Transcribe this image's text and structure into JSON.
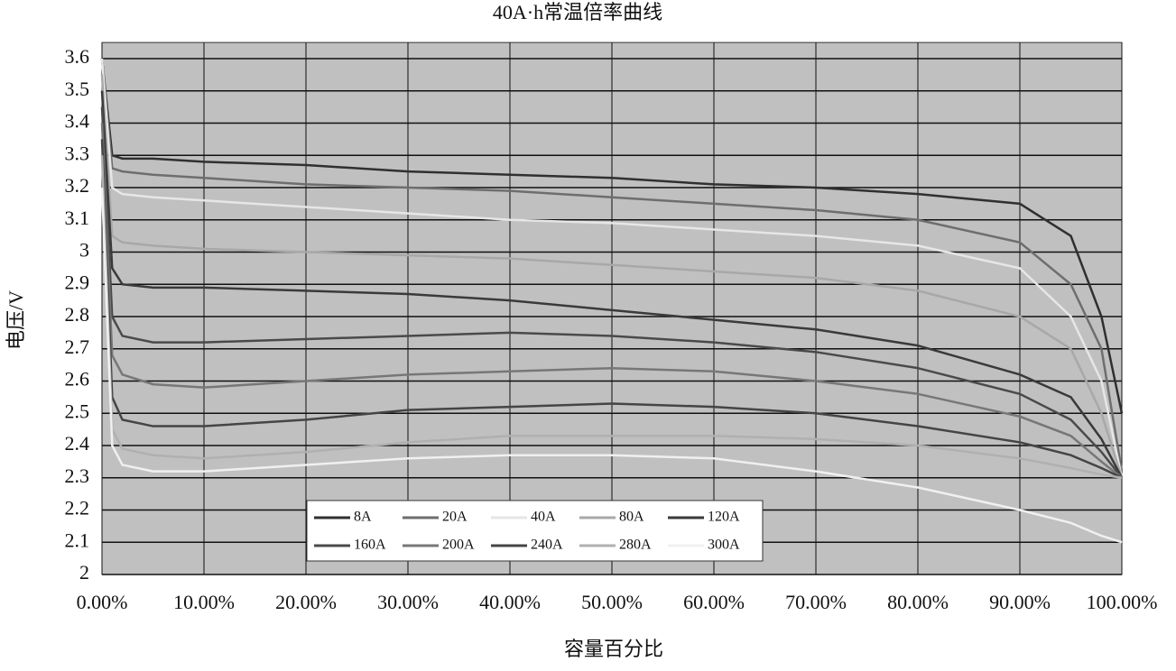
{
  "chart_data": {
    "type": "line",
    "title": "40A·h常温倍率曲线",
    "xlabel": "容量百分比",
    "ylabel": "电压/V",
    "x": [
      0,
      1,
      2,
      5,
      10,
      20,
      30,
      40,
      50,
      60,
      70,
      80,
      90,
      95,
      98,
      100
    ],
    "series": [
      {
        "name": "8A",
        "color": "#303030",
        "values": [
          3.6,
          3.3,
          3.29,
          3.29,
          3.28,
          3.27,
          3.25,
          3.24,
          3.23,
          3.21,
          3.2,
          3.18,
          3.15,
          3.05,
          2.8,
          2.5
        ]
      },
      {
        "name": "20A",
        "color": "#6e6e6e",
        "values": [
          3.6,
          3.26,
          3.25,
          3.24,
          3.23,
          3.21,
          3.2,
          3.19,
          3.17,
          3.15,
          3.13,
          3.1,
          3.03,
          2.9,
          2.7,
          2.32
        ]
      },
      {
        "name": "40A",
        "color": "#e6e6e6",
        "values": [
          3.6,
          3.2,
          3.18,
          3.17,
          3.16,
          3.14,
          3.12,
          3.1,
          3.09,
          3.07,
          3.05,
          3.02,
          2.95,
          2.8,
          2.6,
          2.3
        ]
      },
      {
        "name": "80A",
        "color": "#a8a8a8",
        "values": [
          3.55,
          3.05,
          3.03,
          3.02,
          3.01,
          3.0,
          2.99,
          2.98,
          2.96,
          2.94,
          2.92,
          2.88,
          2.8,
          2.7,
          2.5,
          2.3
        ]
      },
      {
        "name": "120A",
        "color": "#3a3a3a",
        "values": [
          3.5,
          2.95,
          2.9,
          2.89,
          2.89,
          2.88,
          2.87,
          2.85,
          2.82,
          2.79,
          2.76,
          2.71,
          2.62,
          2.55,
          2.42,
          2.3
        ]
      },
      {
        "name": "160A",
        "color": "#4a4a4a",
        "values": [
          3.45,
          2.8,
          2.74,
          2.72,
          2.72,
          2.73,
          2.74,
          2.75,
          2.74,
          2.72,
          2.69,
          2.64,
          2.56,
          2.48,
          2.38,
          2.3
        ]
      },
      {
        "name": "200A",
        "color": "#777777",
        "values": [
          3.4,
          2.68,
          2.62,
          2.59,
          2.58,
          2.6,
          2.62,
          2.63,
          2.64,
          2.63,
          2.6,
          2.56,
          2.49,
          2.43,
          2.35,
          2.3
        ]
      },
      {
        "name": "240A",
        "color": "#454545",
        "values": [
          3.35,
          2.55,
          2.48,
          2.46,
          2.46,
          2.48,
          2.51,
          2.52,
          2.53,
          2.52,
          2.5,
          2.46,
          2.41,
          2.37,
          2.33,
          2.3
        ]
      },
      {
        "name": "280A",
        "color": "#b0b0b0",
        "values": [
          3.3,
          2.45,
          2.39,
          2.37,
          2.36,
          2.38,
          2.41,
          2.43,
          2.43,
          2.43,
          2.42,
          2.4,
          2.36,
          2.33,
          2.31,
          2.3
        ]
      },
      {
        "name": "300A",
        "color": "#f0f0f0",
        "values": [
          3.2,
          2.4,
          2.34,
          2.32,
          2.32,
          2.34,
          2.36,
          2.37,
          2.37,
          2.36,
          2.32,
          2.27,
          2.2,
          2.16,
          2.12,
          2.1
        ]
      }
    ],
    "xlim": [
      0,
      100
    ],
    "xticks": [
      {
        "value": 0,
        "label": "0.00%"
      },
      {
        "value": 10,
        "label": "10.00%"
      },
      {
        "value": 20,
        "label": "20.00%"
      },
      {
        "value": 30,
        "label": "30.00%"
      },
      {
        "value": 40,
        "label": "40.00%"
      },
      {
        "value": 50,
        "label": "50.00%"
      },
      {
        "value": 60,
        "label": "60.00%"
      },
      {
        "value": 70,
        "label": "70.00%"
      },
      {
        "value": 80,
        "label": "80.00%"
      },
      {
        "value": 90,
        "label": "90.00%"
      },
      {
        "value": 100,
        "label": "100.00%"
      }
    ],
    "ylim": [
      2,
      3.65
    ],
    "yticks": [
      2,
      2.1,
      2.2,
      2.3,
      2.4,
      2.5,
      2.6,
      2.7,
      2.8,
      2.9,
      3,
      3.1,
      3.2,
      3.3,
      3.4,
      3.5,
      3.6
    ],
    "grid": true
  }
}
